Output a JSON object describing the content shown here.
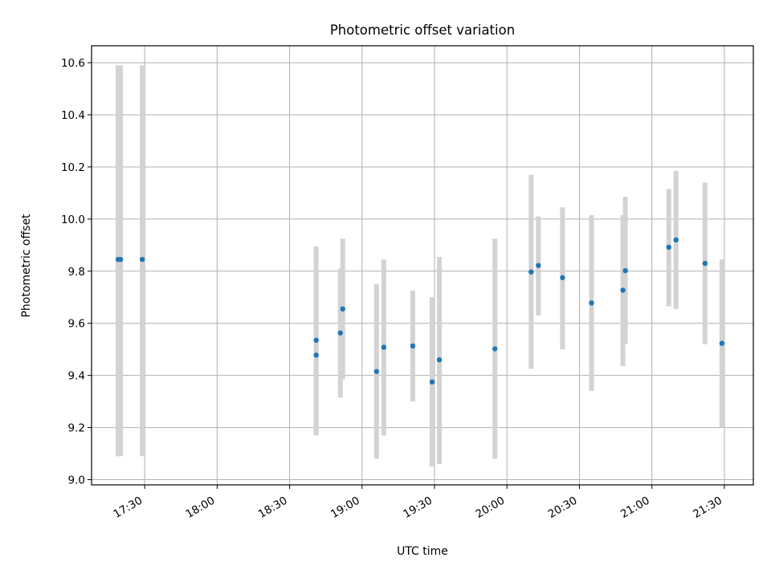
{
  "chart_data": {
    "type": "scatter",
    "title": "Photometric offset variation",
    "xlabel": "UTC time",
    "ylabel": "Photometric offset",
    "x_ticks": [
      "17:30",
      "18:00",
      "18:30",
      "19:00",
      "19:30",
      "20:00",
      "20:30",
      "21:00",
      "21:30"
    ],
    "y_ticks": [
      "9.0",
      "9.2",
      "9.4",
      "9.6",
      "9.8",
      "10.0",
      "10.2",
      "10.4",
      "10.6"
    ],
    "xlim": [
      "17:08",
      "21:42"
    ],
    "ylim": [
      8.98,
      10.665
    ],
    "grid": true,
    "marker_color": "#1f77b4",
    "errorbar_color": "#d3d3d3",
    "points": [
      {
        "x": "17:19",
        "y": 9.845,
        "low": 9.09,
        "high": 10.59
      },
      {
        "x": "17:20",
        "y": 9.845,
        "low": 9.09,
        "high": 10.59
      },
      {
        "x": "17:29",
        "y": 9.845,
        "low": 9.09,
        "high": 10.59
      },
      {
        "x": "18:41",
        "y": 9.478,
        "low": 9.17,
        "high": 9.79
      },
      {
        "x": "18:41",
        "y": 9.535,
        "low": 9.18,
        "high": 9.895
      },
      {
        "x": "18:51",
        "y": 9.563,
        "low": 9.315,
        "high": 9.81
      },
      {
        "x": "18:52",
        "y": 9.655,
        "low": 9.385,
        "high": 9.925
      },
      {
        "x": "19:06",
        "y": 9.415,
        "low": 9.08,
        "high": 9.75
      },
      {
        "x": "19:09",
        "y": 9.508,
        "low": 9.17,
        "high": 9.845
      },
      {
        "x": "19:21",
        "y": 9.513,
        "low": 9.3,
        "high": 9.725
      },
      {
        "x": "19:29",
        "y": 9.375,
        "low": 9.05,
        "high": 9.7
      },
      {
        "x": "19:32",
        "y": 9.46,
        "low": 9.06,
        "high": 9.855
      },
      {
        "x": "19:55",
        "y": 9.502,
        "low": 9.08,
        "high": 9.925
      },
      {
        "x": "20:10",
        "y": 9.797,
        "low": 9.425,
        "high": 10.17
      },
      {
        "x": "20:13",
        "y": 9.822,
        "low": 9.63,
        "high": 10.01
      },
      {
        "x": "20:23",
        "y": 9.775,
        "low": 9.5,
        "high": 10.045
      },
      {
        "x": "20:35",
        "y": 9.678,
        "low": 9.34,
        "high": 10.015
      },
      {
        "x": "20:48",
        "y": 9.727,
        "low": 9.435,
        "high": 10.015
      },
      {
        "x": "20:49",
        "y": 9.802,
        "low": 9.52,
        "high": 10.085
      },
      {
        "x": "21:07",
        "y": 9.892,
        "low": 9.665,
        "high": 10.115
      },
      {
        "x": "21:10",
        "y": 9.92,
        "low": 9.655,
        "high": 10.185
      },
      {
        "x": "21:22",
        "y": 9.83,
        "low": 9.52,
        "high": 10.14
      },
      {
        "x": "21:29",
        "y": 9.523,
        "low": 9.2,
        "high": 9.845
      }
    ]
  }
}
